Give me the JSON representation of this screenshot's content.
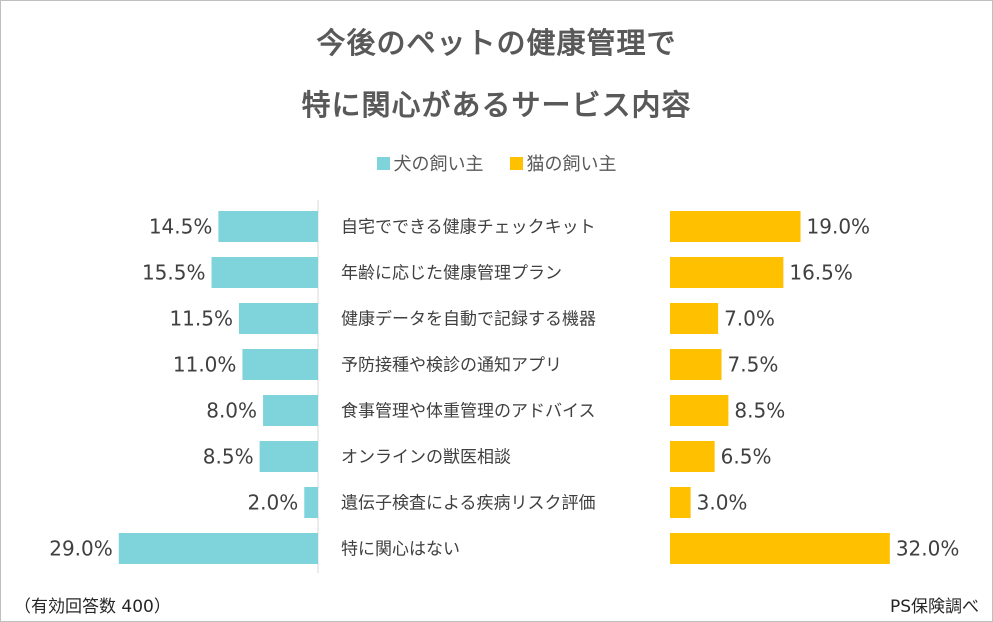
{
  "chart_data": {
    "type": "bar",
    "title_lines": [
      "今後のペットの健康管理で",
      "特に関心があるサービス内容"
    ],
    "categories": [
      "自宅でできる健康チェックキット",
      "年齢に応じた健康管理プラン",
      "健康データを自動で記録する機器",
      "予防接種や検診の通知アプリ",
      "食事管理や体重管理のアドバイス",
      "オンラインの獣医相談",
      "遺伝子検査による疾病リスク評価",
      "特に関心はない"
    ],
    "series": [
      {
        "name": "犬の飼い主",
        "color": "#7fd4dc",
        "values": [
          14.5,
          15.5,
          11.5,
          11.0,
          8.0,
          8.5,
          2.0,
          29.0
        ],
        "labels": [
          "14.5%",
          "15.5%",
          "11.5%",
          "11.0%",
          "8.0%",
          "8.5%",
          "2.0%",
          "29.0%"
        ]
      },
      {
        "name": "猫の飼い主",
        "color": "#ffc000",
        "values": [
          19.0,
          16.5,
          7.0,
          7.5,
          8.5,
          6.5,
          3.0,
          32.0
        ],
        "labels": [
          "19.0%",
          "16.5%",
          "7.0%",
          "7.5%",
          "8.5%",
          "6.5%",
          "3.0%",
          "32.0%"
        ]
      }
    ],
    "legend_position": "top-center",
    "unit": "%"
  },
  "footer": {
    "note": "（有効回答数 400）",
    "source": "PS保険調べ"
  }
}
